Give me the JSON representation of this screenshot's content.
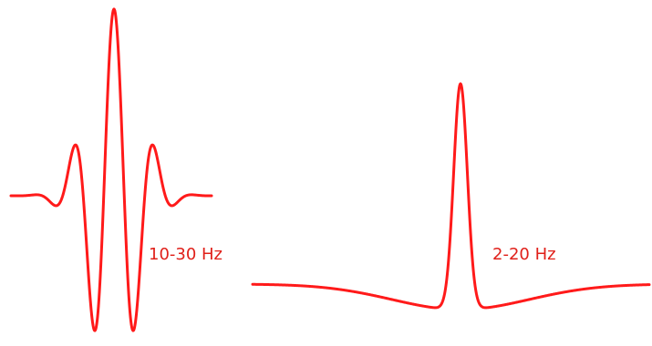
{
  "colors": {
    "stroke": "#ff1a1a",
    "label": "#e0201a",
    "background": "#ffffff"
  },
  "wavelets": [
    {
      "label": "10-30 Hz",
      "shape": "oscillating-wavelet"
    },
    {
      "label": "2-20 Hz",
      "shape": "single-peak-wavelet"
    }
  ]
}
